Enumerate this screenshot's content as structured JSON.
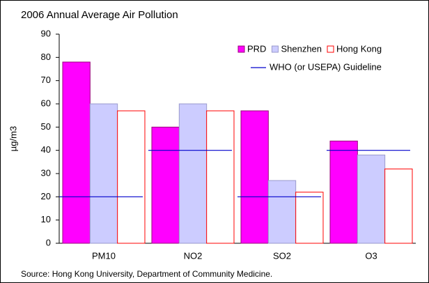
{
  "chart_data": {
    "type": "bar",
    "title": "2006 Annual Average Air Pollution",
    "y_label": "µg/m3",
    "source": "Source: Hong Kong University, Department of Community Medicine.",
    "categories": [
      "PM10",
      "NO2",
      "SO2",
      "O3"
    ],
    "series": [
      {
        "name": "PRD",
        "color": "#ff00ff",
        "edgecolor": "#99007a",
        "values": [
          78,
          50,
          57,
          44
        ]
      },
      {
        "name": "Shenzhen",
        "color": "#ccccff",
        "edgecolor": "#9999cc",
        "values": [
          60,
          60,
          27,
          38
        ]
      },
      {
        "name": "Hong Kong",
        "color": "#ffffff",
        "edgecolor": "#ff0000",
        "values": [
          57,
          57,
          22,
          32
        ]
      }
    ],
    "guideline": {
      "name": "WHO (or USEPA) Guideline",
      "color": "#0000cc",
      "values": [
        20,
        40,
        20,
        40
      ]
    },
    "ylim": [
      0,
      90
    ],
    "yticks": [
      0,
      10,
      20,
      30,
      40,
      50,
      60,
      70,
      80,
      90
    ],
    "legend": "upper right"
  }
}
